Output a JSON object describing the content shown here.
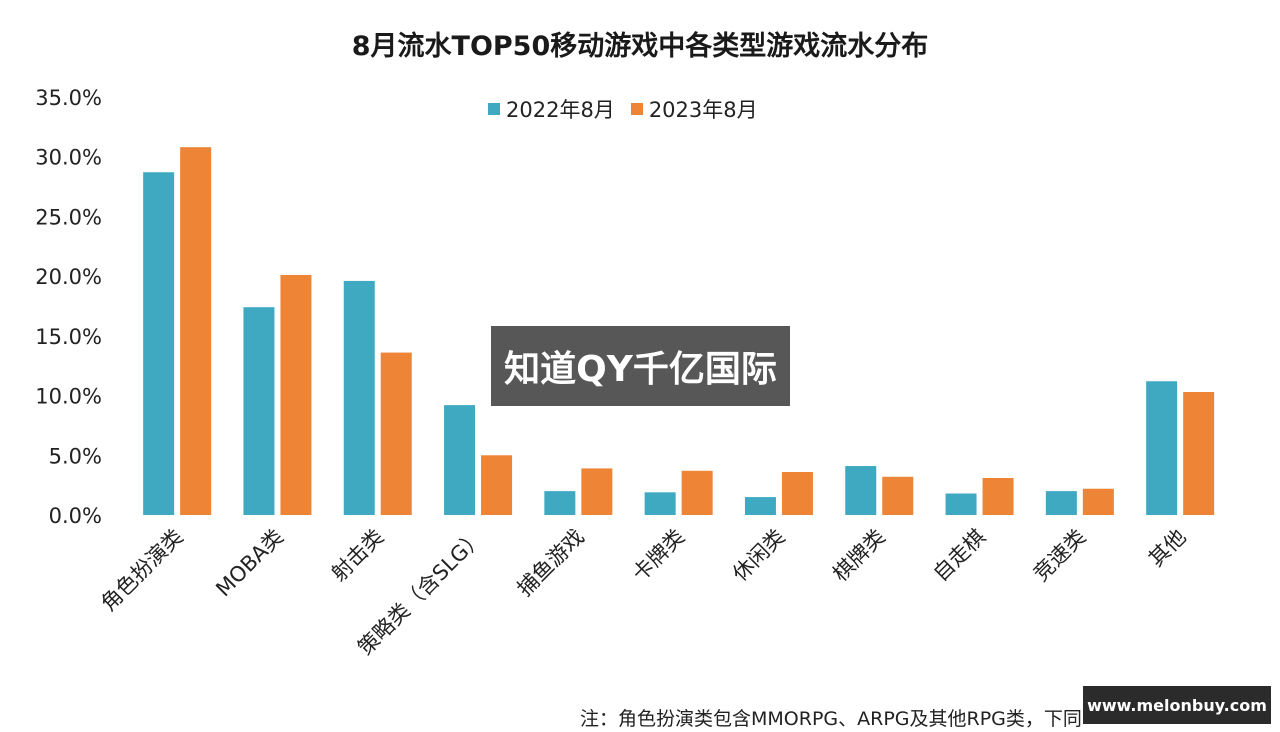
{
  "chart_data": {
    "type": "bar",
    "title": "8月流水TOP50移动游戏中各类型游戏流水分布",
    "categories": [
      "角色扮演类",
      "MOBA类",
      "射击类",
      "策略类（含SLG）",
      "捕鱼游戏",
      "卡牌类",
      "休闲类",
      "棋牌类",
      "自走棋",
      "竞速类",
      "其他"
    ],
    "series": [
      {
        "name": "2022年8月",
        "color": "#3fa9c2",
        "values": [
          28.7,
          17.4,
          19.6,
          9.2,
          2.0,
          1.9,
          1.5,
          4.1,
          1.8,
          2.0,
          11.2
        ]
      },
      {
        "name": "2023年8月",
        "color": "#ee8435",
        "values": [
          30.8,
          20.1,
          13.6,
          5.0,
          3.9,
          3.7,
          3.6,
          3.2,
          3.1,
          2.2,
          10.3
        ]
      }
    ],
    "ylim": [
      0,
      35
    ],
    "yticks": [
      "0.0%",
      "5.0%",
      "10.0%",
      "15.0%",
      "20.0%",
      "25.0%",
      "30.0%",
      "35.0%"
    ],
    "grid": false,
    "legend_position": "top"
  },
  "note": "注：角色扮演类包含MMORPG、ARPG及其他RPG类，下同",
  "watermark": "知道QY千亿国际",
  "site_badge": "www.melonbuy.com"
}
